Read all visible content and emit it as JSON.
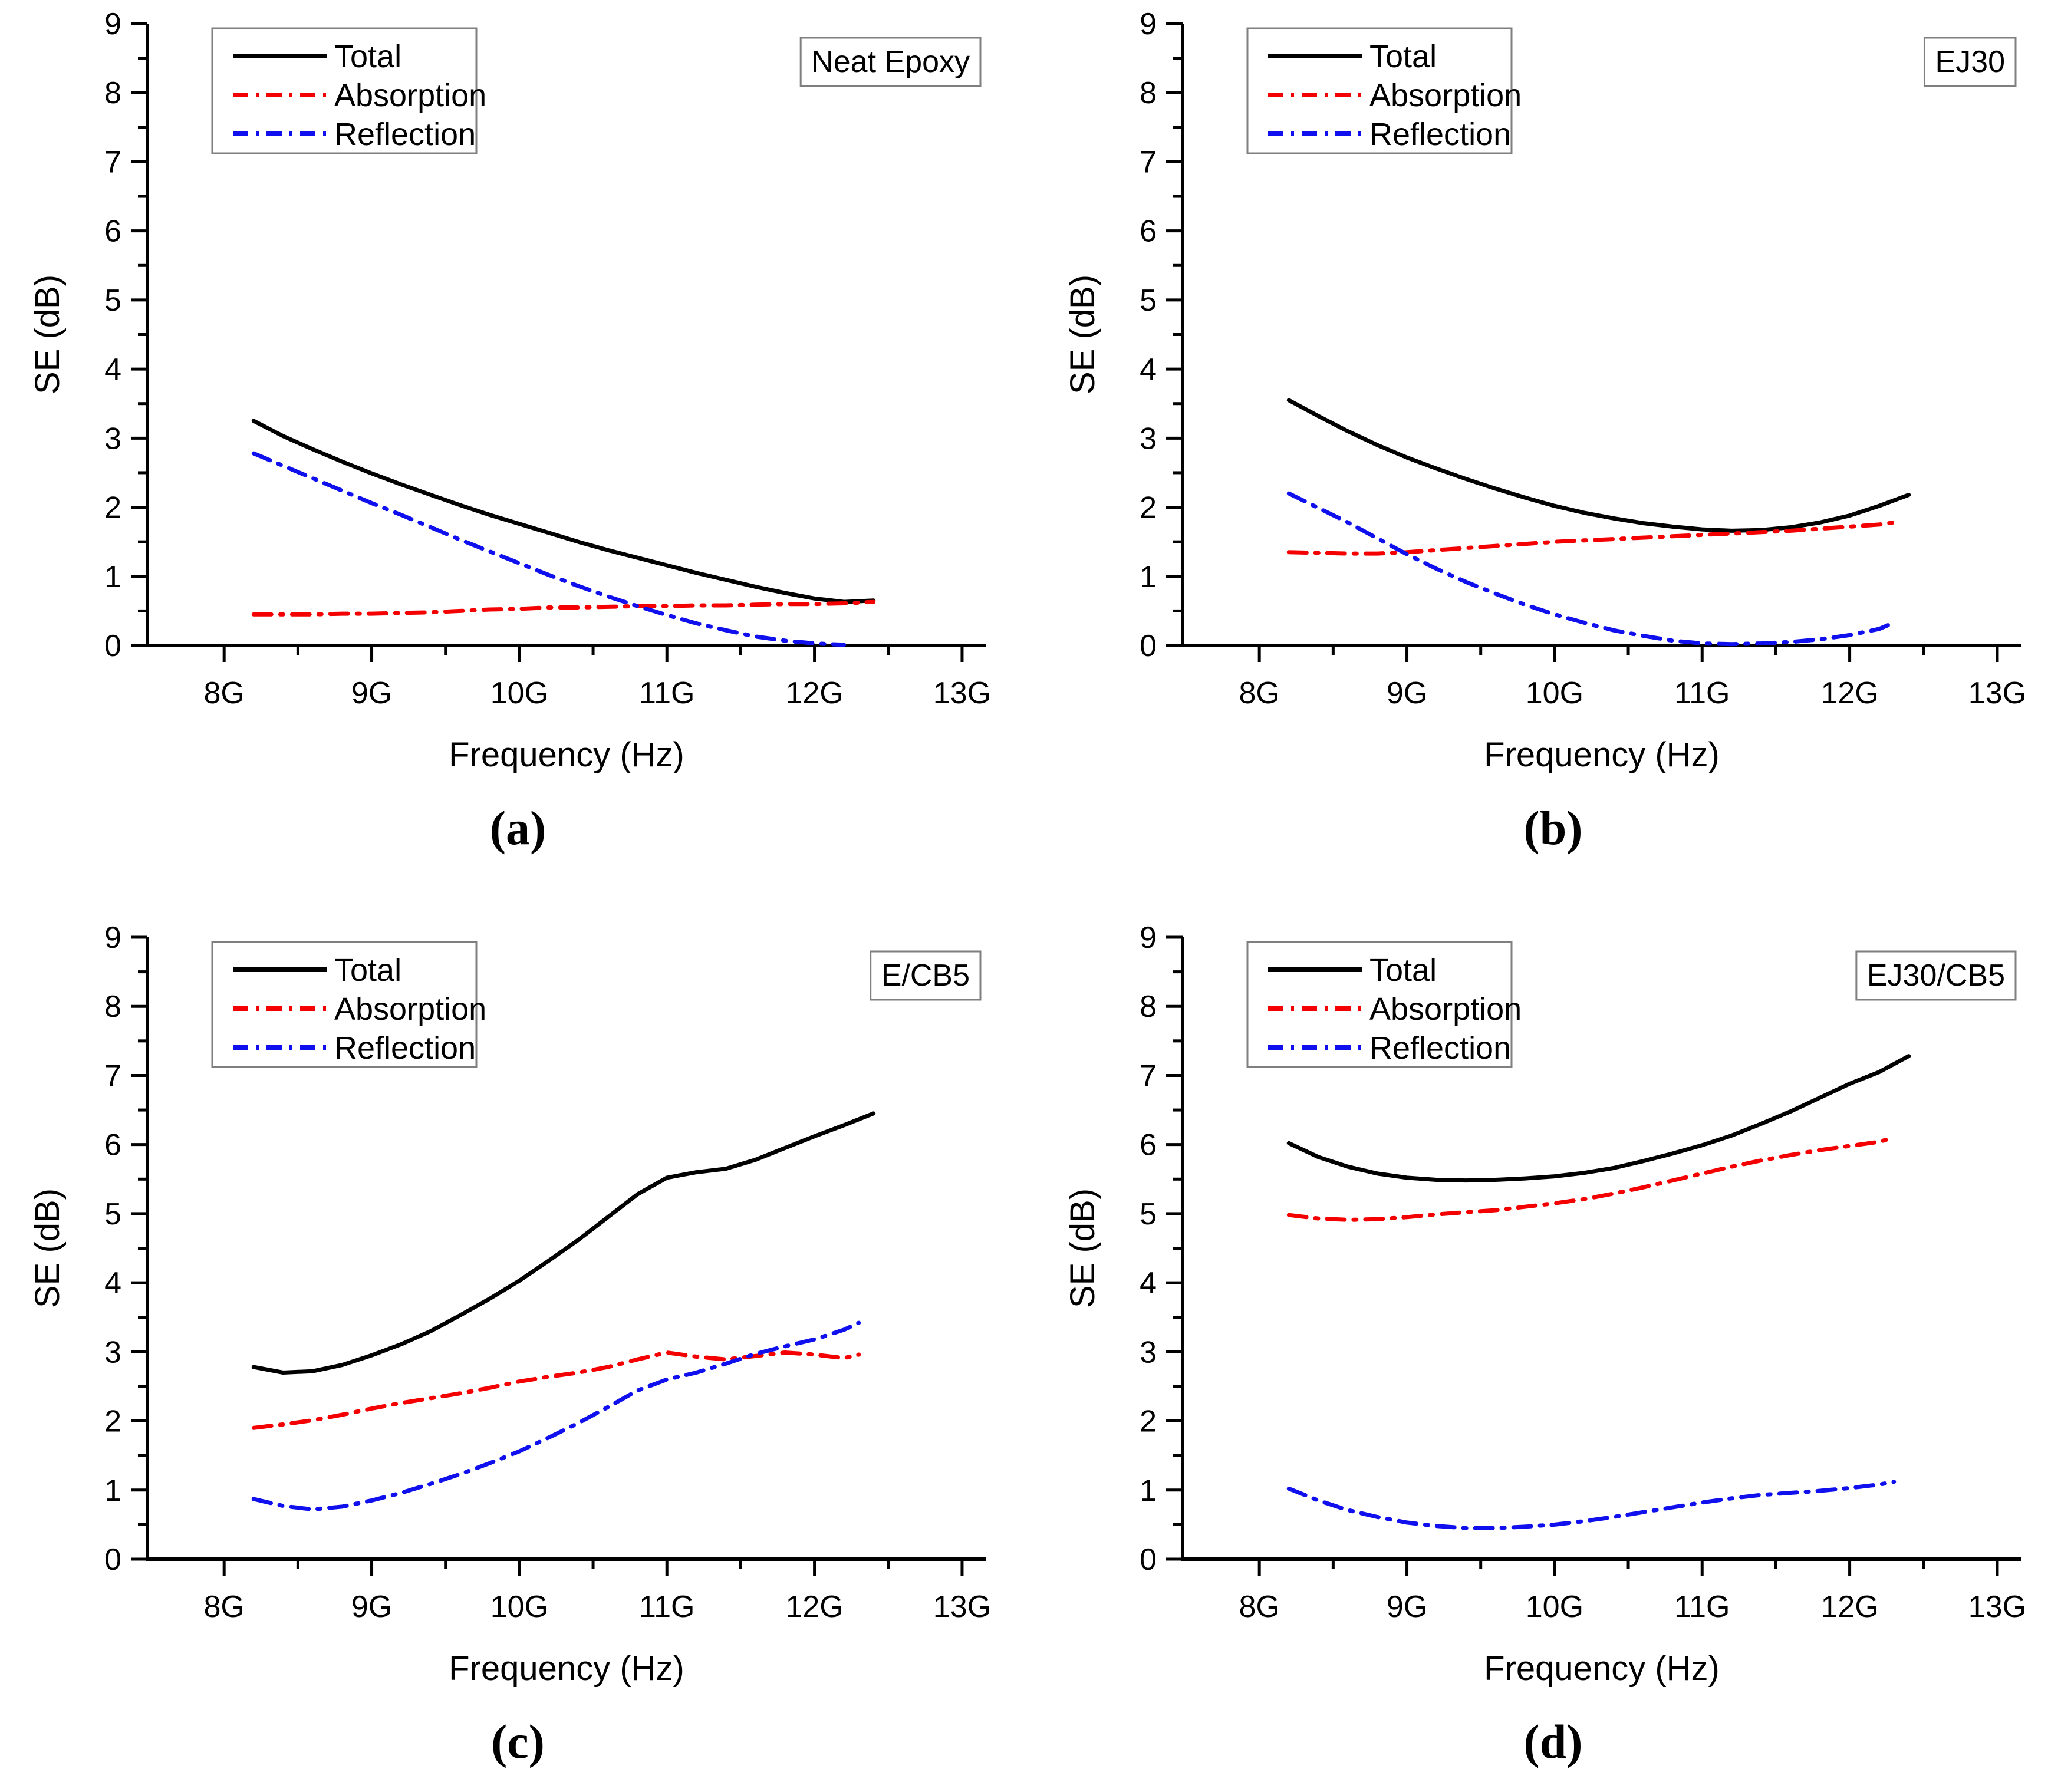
{
  "figure": {
    "background": "#ffffff"
  },
  "axes": {
    "x_label": "Frequency (Hz)",
    "y_label": "SE (dB)",
    "x_range": [
      7.48,
      13.16
    ],
    "y_range": [
      0,
      9
    ],
    "x_ticks": [
      {
        "v": 8,
        "label": "8G"
      },
      {
        "v": 9,
        "label": "9G"
      },
      {
        "v": 10,
        "label": "10G"
      },
      {
        "v": 11,
        "label": "11G"
      },
      {
        "v": 12,
        "label": "12G"
      },
      {
        "v": 13,
        "label": "13G"
      }
    ],
    "x_minor_ticks": [
      8.5,
      9.5,
      10.5,
      11.5,
      12.5
    ],
    "y_ticks": [
      {
        "v": 0,
        "label": "0"
      },
      {
        "v": 1,
        "label": "1"
      },
      {
        "v": 2,
        "label": "2"
      },
      {
        "v": 3,
        "label": "3"
      },
      {
        "v": 4,
        "label": "4"
      },
      {
        "v": 5,
        "label": "5"
      },
      {
        "v": 6,
        "label": "6"
      },
      {
        "v": 7,
        "label": "7"
      },
      {
        "v": 8,
        "label": "8"
      },
      {
        "v": 9,
        "label": "9"
      }
    ],
    "y_minor_ticks": [
      0.5,
      1.5,
      2.5,
      3.5,
      4.5,
      5.5,
      6.5,
      7.5,
      8.5
    ],
    "grid": "off",
    "axis_color": "#000000"
  },
  "legend": {
    "position": "top-left-inside",
    "border_color": "#7f7f7f",
    "entries": [
      {
        "label": "Total",
        "color": "#000000",
        "style": "solid"
      },
      {
        "label": "Absorption",
        "color": "#f40000",
        "style": "dashdot"
      },
      {
        "label": "Reflection",
        "color": "#1010ee",
        "style": "dashdot"
      }
    ]
  },
  "chart_data": [
    {
      "type": "line",
      "title": "Neat Epoxy",
      "caption": "(a)",
      "xlabel": "Frequency (Hz)",
      "ylabel": "SE (dB)",
      "xlim": [
        7.48,
        13.16
      ],
      "ylim": [
        0,
        9
      ],
      "series": [
        {
          "name": "Total",
          "color": "#000000",
          "style": "solid",
          "x": [
            8.2,
            8.4,
            8.6,
            8.8,
            9.0,
            9.2,
            9.4,
            9.6,
            9.8,
            10.0,
            10.2,
            10.4,
            10.6,
            10.8,
            11.0,
            11.2,
            11.4,
            11.6,
            11.8,
            12.0,
            12.2,
            12.4
          ],
          "y": [
            3.25,
            3.03,
            2.84,
            2.66,
            2.49,
            2.33,
            2.18,
            2.03,
            1.89,
            1.76,
            1.63,
            1.5,
            1.38,
            1.27,
            1.16,
            1.05,
            0.95,
            0.85,
            0.76,
            0.68,
            0.63,
            0.65
          ]
        },
        {
          "name": "Absorption",
          "color": "#f40000",
          "style": "dashdot",
          "x": [
            8.2,
            8.4,
            8.6,
            8.8,
            9.0,
            9.2,
            9.4,
            9.6,
            9.8,
            10.0,
            10.2,
            10.4,
            10.6,
            10.8,
            11.0,
            11.2,
            11.4,
            11.6,
            11.8,
            12.0,
            12.2,
            12.4
          ],
          "y": [
            0.45,
            0.45,
            0.45,
            0.46,
            0.46,
            0.47,
            0.48,
            0.5,
            0.52,
            0.53,
            0.55,
            0.55,
            0.56,
            0.57,
            0.57,
            0.58,
            0.58,
            0.59,
            0.6,
            0.6,
            0.61,
            0.63
          ]
        },
        {
          "name": "Reflection",
          "color": "#1010ee",
          "style": "dashdot",
          "x": [
            8.2,
            8.4,
            8.6,
            8.8,
            9.0,
            9.2,
            9.4,
            9.6,
            9.8,
            10.0,
            10.2,
            10.4,
            10.6,
            10.8,
            11.0,
            11.2,
            11.4,
            11.6,
            11.8,
            12.0,
            12.2
          ],
          "y": [
            2.78,
            2.6,
            2.42,
            2.24,
            2.06,
            1.89,
            1.71,
            1.53,
            1.36,
            1.19,
            1.02,
            0.86,
            0.71,
            0.57,
            0.44,
            0.32,
            0.22,
            0.13,
            0.07,
            0.03,
            0.01
          ]
        }
      ]
    },
    {
      "type": "line",
      "title": "EJ30",
      "caption": "(b)",
      "xlabel": "Frequency (Hz)",
      "ylabel": "SE (dB)",
      "xlim": [
        7.48,
        13.16
      ],
      "ylim": [
        0,
        9
      ],
      "series": [
        {
          "name": "Total",
          "color": "#000000",
          "style": "solid",
          "x": [
            8.2,
            8.4,
            8.6,
            8.8,
            9.0,
            9.2,
            9.4,
            9.6,
            9.8,
            10.0,
            10.2,
            10.4,
            10.6,
            10.8,
            11.0,
            11.2,
            11.4,
            11.6,
            11.8,
            12.0,
            12.2,
            12.4
          ],
          "y": [
            3.55,
            3.32,
            3.1,
            2.9,
            2.72,
            2.56,
            2.41,
            2.27,
            2.14,
            2.02,
            1.92,
            1.84,
            1.77,
            1.72,
            1.68,
            1.66,
            1.67,
            1.71,
            1.78,
            1.88,
            2.02,
            2.18
          ]
        },
        {
          "name": "Absorption",
          "color": "#f40000",
          "style": "dashdot",
          "x": [
            8.2,
            8.4,
            8.6,
            8.8,
            9.0,
            9.2,
            9.4,
            9.6,
            9.8,
            10.0,
            10.2,
            10.4,
            10.6,
            10.8,
            11.0,
            11.2,
            11.4,
            11.6,
            11.8,
            12.0,
            12.2,
            12.3
          ],
          "y": [
            1.35,
            1.34,
            1.33,
            1.33,
            1.35,
            1.38,
            1.41,
            1.44,
            1.47,
            1.5,
            1.52,
            1.54,
            1.56,
            1.58,
            1.6,
            1.62,
            1.64,
            1.66,
            1.69,
            1.72,
            1.75,
            1.78
          ]
        },
        {
          "name": "Reflection",
          "color": "#1010ee",
          "style": "dashdot",
          "x": [
            8.2,
            8.4,
            8.6,
            8.8,
            9.0,
            9.2,
            9.4,
            9.6,
            9.8,
            10.0,
            10.2,
            10.4,
            10.6,
            10.8,
            11.0,
            11.2,
            11.4,
            11.6,
            11.8,
            12.0,
            12.2,
            12.3
          ],
          "y": [
            2.2,
            1.99,
            1.78,
            1.55,
            1.32,
            1.11,
            0.92,
            0.75,
            0.59,
            0.45,
            0.33,
            0.22,
            0.14,
            0.07,
            0.03,
            0.02,
            0.03,
            0.05,
            0.09,
            0.15,
            0.24,
            0.33
          ]
        }
      ]
    },
    {
      "type": "line",
      "title": "E/CB5",
      "caption": "(c)",
      "xlabel": "Frequency (Hz)",
      "ylabel": "SE (dB)",
      "xlim": [
        7.48,
        13.16
      ],
      "ylim": [
        0,
        9
      ],
      "series": [
        {
          "name": "Total",
          "color": "#000000",
          "style": "solid",
          "x": [
            8.2,
            8.4,
            8.6,
            8.8,
            9.0,
            9.2,
            9.4,
            9.6,
            9.8,
            10.0,
            10.2,
            10.4,
            10.6,
            10.8,
            11.0,
            11.2,
            11.4,
            11.6,
            11.8,
            12.0,
            12.2,
            12.4
          ],
          "y": [
            2.78,
            2.7,
            2.72,
            2.81,
            2.95,
            3.11,
            3.3,
            3.53,
            3.77,
            4.03,
            4.32,
            4.62,
            4.95,
            5.28,
            5.52,
            5.6,
            5.65,
            5.78,
            5.95,
            6.12,
            6.28,
            6.45
          ]
        },
        {
          "name": "Absorption",
          "color": "#f40000",
          "style": "dashdot",
          "x": [
            8.2,
            8.4,
            8.6,
            8.8,
            9.0,
            9.2,
            9.4,
            9.6,
            9.8,
            10.0,
            10.2,
            10.4,
            10.6,
            10.8,
            11.0,
            11.2,
            11.4,
            11.6,
            11.8,
            12.0,
            12.2,
            12.3
          ],
          "y": [
            1.9,
            1.95,
            2.01,
            2.09,
            2.18,
            2.26,
            2.33,
            2.4,
            2.48,
            2.57,
            2.64,
            2.7,
            2.78,
            2.89,
            2.99,
            2.93,
            2.89,
            2.94,
            2.99,
            2.96,
            2.91,
            2.96
          ]
        },
        {
          "name": "Reflection",
          "color": "#1010ee",
          "style": "dashdot",
          "x": [
            8.2,
            8.4,
            8.6,
            8.8,
            9.0,
            9.2,
            9.4,
            9.6,
            9.8,
            10.0,
            10.2,
            10.4,
            10.6,
            10.8,
            11.0,
            11.2,
            11.4,
            11.6,
            11.8,
            12.0,
            12.2,
            12.3
          ],
          "y": [
            0.87,
            0.77,
            0.72,
            0.76,
            0.85,
            0.96,
            1.09,
            1.23,
            1.39,
            1.56,
            1.76,
            1.97,
            2.2,
            2.44,
            2.6,
            2.7,
            2.83,
            2.97,
            3.08,
            3.18,
            3.32,
            3.42
          ]
        }
      ]
    },
    {
      "type": "line",
      "title": "EJ30/CB5",
      "caption": "(d)",
      "xlabel": "Frequency (Hz)",
      "ylabel": "SE (dB)",
      "xlim": [
        7.48,
        13.16
      ],
      "ylim": [
        0,
        9
      ],
      "series": [
        {
          "name": "Total",
          "color": "#000000",
          "style": "solid",
          "x": [
            8.2,
            8.4,
            8.6,
            8.8,
            9.0,
            9.2,
            9.4,
            9.6,
            9.8,
            10.0,
            10.2,
            10.4,
            10.6,
            10.8,
            11.0,
            11.2,
            11.4,
            11.6,
            11.8,
            12.0,
            12.2,
            12.4
          ],
          "y": [
            6.02,
            5.82,
            5.68,
            5.58,
            5.52,
            5.49,
            5.48,
            5.49,
            5.51,
            5.54,
            5.59,
            5.66,
            5.76,
            5.87,
            5.99,
            6.13,
            6.3,
            6.48,
            6.68,
            6.88,
            7.05,
            7.28
          ]
        },
        {
          "name": "Absorption",
          "color": "#f40000",
          "style": "dashdot",
          "x": [
            8.2,
            8.4,
            8.6,
            8.8,
            9.0,
            9.2,
            9.4,
            9.6,
            9.8,
            10.0,
            10.2,
            10.4,
            10.6,
            10.8,
            11.0,
            11.2,
            11.4,
            11.6,
            11.8,
            12.0,
            12.2,
            12.3
          ],
          "y": [
            4.98,
            4.93,
            4.91,
            4.92,
            4.95,
            4.99,
            5.02,
            5.05,
            5.1,
            5.15,
            5.21,
            5.29,
            5.38,
            5.48,
            5.58,
            5.68,
            5.77,
            5.85,
            5.92,
            5.98,
            6.04,
            6.1
          ]
        },
        {
          "name": "Reflection",
          "color": "#1010ee",
          "style": "dashdot",
          "x": [
            8.2,
            8.4,
            8.6,
            8.8,
            9.0,
            9.2,
            9.4,
            9.6,
            9.8,
            10.0,
            10.2,
            10.4,
            10.6,
            10.8,
            11.0,
            11.2,
            11.4,
            11.6,
            11.8,
            12.0,
            12.2,
            12.3
          ],
          "y": [
            1.02,
            0.85,
            0.71,
            0.61,
            0.53,
            0.48,
            0.45,
            0.45,
            0.47,
            0.5,
            0.55,
            0.61,
            0.68,
            0.75,
            0.82,
            0.88,
            0.93,
            0.96,
            0.99,
            1.03,
            1.08,
            1.12
          ]
        }
      ]
    }
  ]
}
